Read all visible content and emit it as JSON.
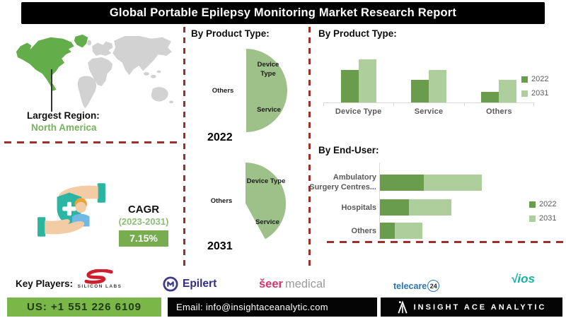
{
  "title": "Global Portable Epilepsy Monitoring Market Research Report",
  "left": {
    "largest_region_label": "Largest Region:",
    "largest_region_value": "North America",
    "cagr_label": "CAGR",
    "cagr_period": "(2023-2031)",
    "cagr_value": "7.15%"
  },
  "middle": {
    "section_title": "By Product Type:"
  },
  "right": {
    "bar_title": "By Product Type:",
    "enduser_title": "By End-User:"
  },
  "chart_data": [
    {
      "id": "product_pie_2022",
      "type": "pie",
      "title": "2022",
      "labels": [
        "Device Type",
        "Service",
        "Others"
      ],
      "values": [
        16,
        34,
        50
      ],
      "colors": [
        "#4e7b38",
        "#6fa653",
        "#9dc189"
      ],
      "legend_position": "none"
    },
    {
      "id": "product_pie_2031",
      "type": "pie",
      "title": "2031",
      "labels": [
        "Device Type",
        "Service",
        "Others"
      ],
      "values": [
        26,
        32,
        42
      ],
      "colors": [
        "#4e7b38",
        "#6fa653",
        "#9dc189"
      ],
      "legend_position": "none"
    },
    {
      "id": "product_bar",
      "type": "bar",
      "title": "By Product Type:",
      "categories": [
        "Device Type",
        "Service",
        "Others"
      ],
      "series": [
        {
          "name": "2022",
          "values": [
            48,
            34,
            16
          ],
          "color": "#699c4b"
        },
        {
          "name": "2031",
          "values": [
            64,
            48,
            34
          ],
          "color": "#aecf9c"
        }
      ],
      "ylim": [
        0,
        100
      ],
      "grid": false,
      "legend_position": "right"
    },
    {
      "id": "end_user_bar",
      "type": "bar-horizontal-stacked",
      "title": "By End-User:",
      "categories": [
        "Ambulatory Surgery Centres...",
        "Hospitals",
        "Others"
      ],
      "series": [
        {
          "name": "2022",
          "values": [
            45,
            30,
            15
          ],
          "color": "#699c4b"
        },
        {
          "name": "2031",
          "values": [
            60,
            44,
            29
          ],
          "color": "#aecf9c"
        }
      ],
      "xlim": [
        0,
        160
      ],
      "grid": false,
      "legend_position": "right"
    }
  ],
  "key_players": {
    "label": "Key Players:",
    "silicon_labs": "SILICON LABS",
    "epilert": "Epilert",
    "seer": "šeer",
    "seer_suffix": "medical",
    "telecare": "telecare",
    "telecare_badge": "24",
    "vios_mark": "√",
    "vios": "ios"
  },
  "footer": {
    "phone": "US: +1 551 226 6109",
    "email": "Email: info@insightaceanalytic.com",
    "company": "INSIGHT ACE ANALYTIC"
  },
  "colors": {
    "dashed_red": "#9e2f2a",
    "map_gray": "#d2d2d2",
    "na_green": "#64ad4b",
    "footer_green": "#7ab648",
    "cagr_green": "#77ad4e"
  }
}
